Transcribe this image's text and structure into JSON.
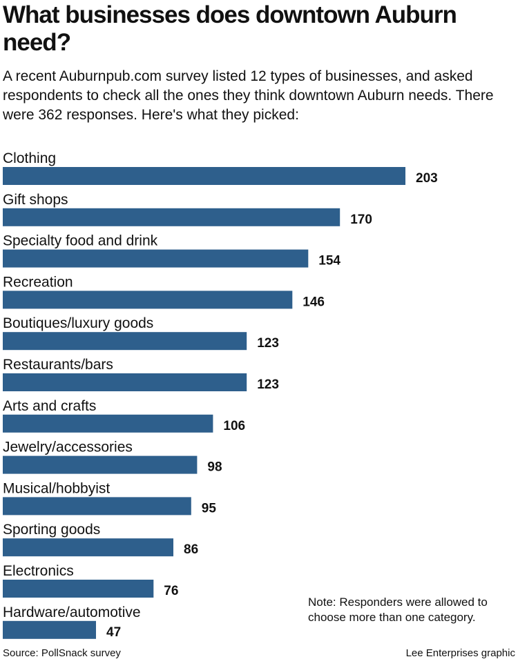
{
  "chart_data": {
    "type": "bar",
    "orientation": "horizontal",
    "title": "What businesses does downtown Auburn need?",
    "subtitle": "A recent Auburnpub.com survey listed 12 types of businesses, and asked respondents to check all the ones they think downtown Auburn needs. There were 362 responses. Here's what they picked:",
    "categories": [
      "Clothing",
      "Gift shops",
      "Specialty food and drink",
      "Recreation",
      "Boutiques/luxury goods",
      "Restaurants/bars",
      "Arts and crafts",
      "Jewelry/accessories",
      "Musical/hobbyist",
      "Sporting goods",
      "Electronics",
      "Hardware/automotive"
    ],
    "values": [
      203,
      170,
      154,
      146,
      123,
      123,
      106,
      98,
      95,
      86,
      76,
      47
    ],
    "bar_color": "#2e5f8c",
    "xlim": [
      0,
      203
    ],
    "grid": false,
    "legend": "none",
    "note": "Note: Responders were allowed to choose more than one category.",
    "source": "Source: PollSnack survey",
    "credit": "Lee Enterprises graphic"
  }
}
